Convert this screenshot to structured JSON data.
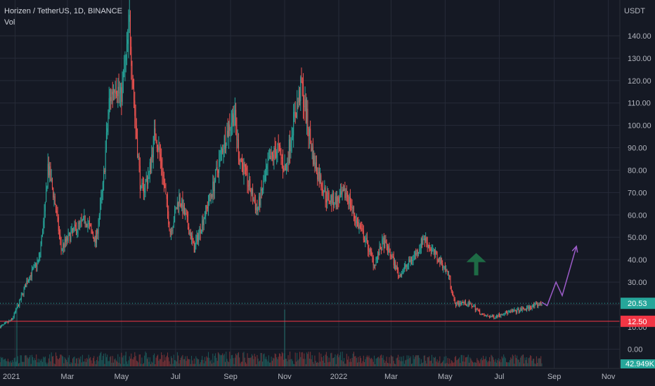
{
  "header": {
    "symbol_line": "Horizen / TetherUS, 1D, BINANCE",
    "indicator": "Vol"
  },
  "price_axis": {
    "currency": "USDT",
    "ticks": [
      "140.00",
      "130.00",
      "120.00",
      "110.00",
      "100.00",
      "90.00",
      "80.00",
      "70.00",
      "60.00",
      "50.00",
      "40.00",
      "30.00",
      "20.00",
      "10.00",
      "0.00"
    ]
  },
  "time_axis": {
    "ticks": [
      "2021",
      "Mar",
      "May",
      "Jul",
      "Sep",
      "Nov",
      "2022",
      "Mar",
      "May",
      "Jul",
      "Sep",
      "Nov"
    ]
  },
  "price_tags": {
    "last": {
      "label": "20.53",
      "value": 20.53,
      "color": "#26a69a"
    },
    "support": {
      "label": "12.50",
      "value": 12.5,
      "color": "#f23645"
    },
    "volume": {
      "label": "42.949K",
      "color": "#26a69a"
    }
  },
  "colors": {
    "background": "#151924",
    "up": "#26a69a",
    "down": "#ef5350",
    "grid": "#262b38",
    "projection": "#9c5cc9",
    "arrow": "#1e6b45"
  },
  "annotations": {
    "arrow": {
      "direction": "up",
      "x": "2022-06-05",
      "y_low": 33,
      "y_high": 43
    },
    "projection_path": [
      {
        "x": "2022-08-18",
        "y": 21
      },
      {
        "x": "2022-08-24",
        "y": 19.5
      },
      {
        "x": "2022-09-03",
        "y": 30
      },
      {
        "x": "2022-09-10",
        "y": 24
      },
      {
        "x": "2022-09-26",
        "y": 46
      }
    ]
  },
  "chart_data": {
    "type": "candlestick",
    "title": "Horizen / TetherUS, 1D, BINANCE",
    "ylim": [
      -7,
      156
    ],
    "xlim": [
      "2020-12-15",
      "2022-11-14"
    ],
    "price_path": [
      [
        "2020-12-15",
        10
      ],
      [
        "2020-12-28",
        13
      ],
      [
        "2021-01-05",
        20
      ],
      [
        "2021-01-15",
        31
      ],
      [
        "2021-01-28",
        40
      ],
      [
        "2021-02-04",
        63
      ],
      [
        "2021-02-07",
        82
      ],
      [
        "2021-02-14",
        68
      ],
      [
        "2021-02-22",
        45
      ],
      [
        "2021-03-08",
        53
      ],
      [
        "2021-03-22",
        58
      ],
      [
        "2021-04-02",
        48
      ],
      [
        "2021-04-10",
        72
      ],
      [
        "2021-04-17",
        110
      ],
      [
        "2021-04-24",
        120
      ],
      [
        "2021-04-30",
        112
      ],
      [
        "2021-05-07",
        132
      ],
      [
        "2021-05-10",
        146
      ],
      [
        "2021-05-16",
        105
      ],
      [
        "2021-05-23",
        70
      ],
      [
        "2021-06-01",
        78
      ],
      [
        "2021-06-08",
        98
      ],
      [
        "2021-06-16",
        80
      ],
      [
        "2021-06-25",
        52
      ],
      [
        "2021-07-05",
        68
      ],
      [
        "2021-07-13",
        58
      ],
      [
        "2021-07-22",
        45
      ],
      [
        "2021-08-01",
        58
      ],
      [
        "2021-08-12",
        72
      ],
      [
        "2021-08-24",
        92
      ],
      [
        "2021-09-05",
        106
      ],
      [
        "2021-09-10",
        88
      ],
      [
        "2021-09-20",
        75
      ],
      [
        "2021-10-01",
        62
      ],
      [
        "2021-10-14",
        83
      ],
      [
        "2021-10-24",
        90
      ],
      [
        "2021-11-02",
        80
      ],
      [
        "2021-11-10",
        100
      ],
      [
        "2021-11-20",
        118
      ],
      [
        "2021-11-25",
        105
      ],
      [
        "2021-12-04",
        84
      ],
      [
        "2021-12-18",
        68
      ],
      [
        "2021-12-30",
        66
      ],
      [
        "2022-01-10",
        70
      ],
      [
        "2022-01-20",
        58
      ],
      [
        "2022-02-01",
        48
      ],
      [
        "2022-02-10",
        38
      ],
      [
        "2022-02-20",
        48
      ],
      [
        "2022-03-01",
        42
      ],
      [
        "2022-03-10",
        33
      ],
      [
        "2022-03-20",
        38
      ],
      [
        "2022-03-31",
        44
      ],
      [
        "2022-04-07",
        50
      ],
      [
        "2022-04-16",
        44
      ],
      [
        "2022-04-28",
        38
      ],
      [
        "2022-05-05",
        33
      ],
      [
        "2022-05-12",
        20
      ],
      [
        "2022-05-20",
        21
      ],
      [
        "2022-06-01",
        19.5
      ],
      [
        "2022-06-13",
        15
      ],
      [
        "2022-06-25",
        14.5
      ],
      [
        "2022-07-05",
        16
      ],
      [
        "2022-07-18",
        17
      ],
      [
        "2022-07-30",
        18
      ],
      [
        "2022-08-10",
        19.5
      ],
      [
        "2022-08-18",
        20.5
      ]
    ],
    "volume_spikes": [
      {
        "x": "2021-01-03",
        "value": 1.0
      },
      {
        "x": "2021-11-01",
        "value": 0.9
      }
    ],
    "hlines": [
      {
        "y": 20.53,
        "style": "dotted",
        "color": "#26a69a"
      },
      {
        "y": 12.5,
        "style": "solid",
        "color": "#f23645"
      }
    ]
  }
}
